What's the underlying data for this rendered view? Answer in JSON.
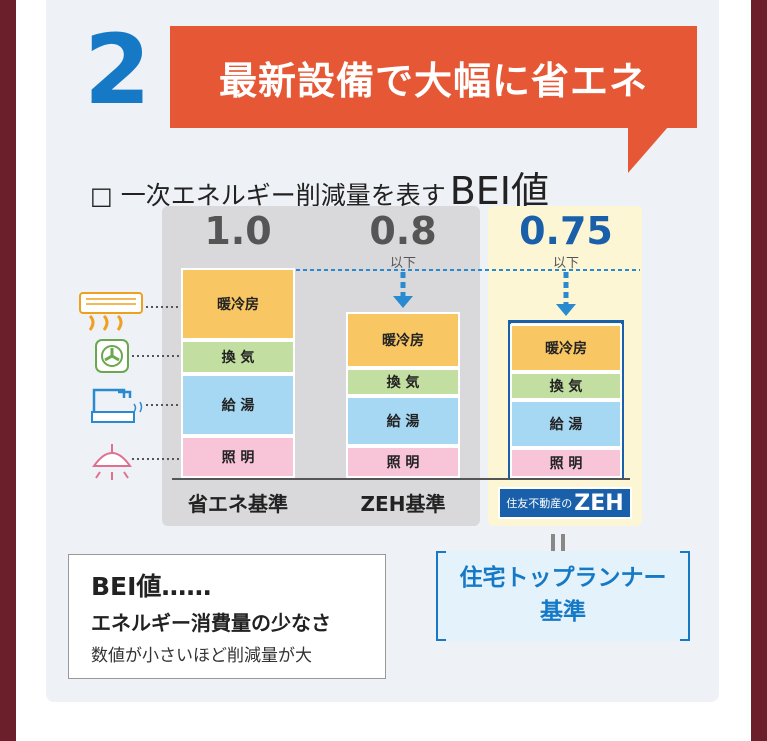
{
  "step_number": "2",
  "banner": "最新設備で大幅に省エネ",
  "subtitle": {
    "box": "□",
    "text": "一次エネルギー削減量を表す",
    "bei": "BEI値"
  },
  "columns": [
    {
      "value": "1.0",
      "suffix": "",
      "label": "省エネ基準",
      "segments": [
        "暖冷房",
        "換 気",
        "給 湯",
        "照 明"
      ]
    },
    {
      "value": "0.8",
      "suffix": "以下",
      "label": "ZEH基準",
      "segments": [
        "暖冷房",
        "換 気",
        "給 湯",
        "照 明"
      ]
    },
    {
      "value": "0.75",
      "suffix": "以下",
      "label_small": "住友不動産の",
      "label_big": "ZEH",
      "segments": [
        "暖冷房",
        "換 気",
        "給 湯",
        "照 明"
      ]
    }
  ],
  "icons": [
    "air-conditioner-icon",
    "ventilation-fan-icon",
    "faucet-icon",
    "ceiling-light-icon"
  ],
  "runner": {
    "line1": "住宅トップランナー",
    "line2": "基準"
  },
  "info": {
    "title": "BEI値……",
    "line1": "エネルギー消費量の少なさ",
    "line2": "数値が小さいほど削減量が大"
  },
  "colors": {
    "heating": "#f8c662",
    "ventilation": "#c2dea1",
    "water": "#a7d8f3",
    "lighting": "#f7c4d8",
    "accent_blue": "#1679c6",
    "banner": "#e65735"
  }
}
